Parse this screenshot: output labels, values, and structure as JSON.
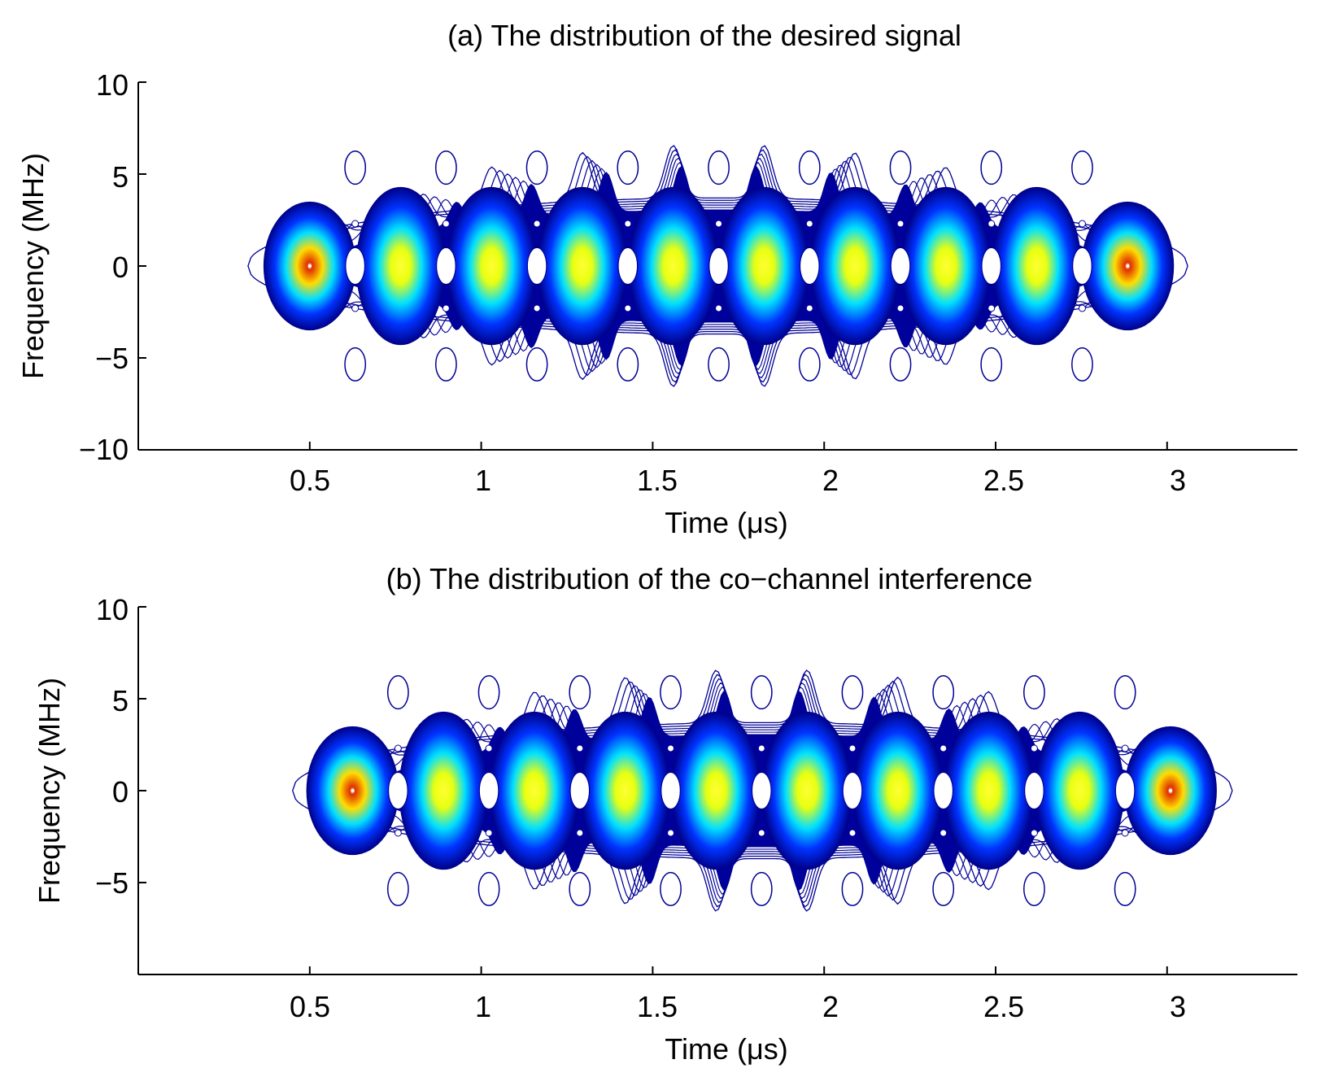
{
  "chart_data": [
    {
      "type": "contour",
      "title": "(a) The distribution of the desired signal",
      "xlabel": "Time (μs)",
      "ylabel": "Frequency (MHz)",
      "xlim": [
        0,
        3.38
      ],
      "ylim": [
        -10,
        10
      ],
      "xticks": [
        0.5,
        1,
        1.5,
        2,
        2.5,
        3
      ],
      "xtick_labels": [
        "0.5",
        "1",
        "1.5",
        "2",
        "2.5",
        "3"
      ],
      "yticks": [
        10,
        5,
        0,
        -5,
        -10
      ],
      "ytick_labels": [
        "10",
        "5",
        "0",
        "−5",
        "−10"
      ],
      "colormap": "jet",
      "peaks": {
        "times": [
          0.5,
          0.765,
          1.03,
          1.295,
          1.56,
          1.825,
          2.09,
          2.355,
          2.62,
          2.885
        ],
        "levels": [
          1.0,
          0.75,
          0.75,
          0.75,
          0.75,
          0.75,
          0.75,
          0.75,
          0.75,
          1.0
        ]
      },
      "envelope_time_range": [
        0.32,
        3.06
      ],
      "envelope_freq_range": [
        -7,
        7
      ]
    },
    {
      "type": "contour",
      "title": "(b) The distribution of the co−channel interference",
      "xlabel": "Time (μs)",
      "ylabel": "Frequency (MHz)",
      "xlim": [
        0,
        3.38
      ],
      "ylim": [
        -10,
        10
      ],
      "xticks": [
        0.5,
        1,
        1.5,
        2,
        2.5,
        3
      ],
      "xtick_labels": [
        "0.5",
        "1",
        "1.5",
        "2",
        "2.5",
        "3"
      ],
      "yticks": [
        10,
        5,
        0,
        -5
      ],
      "ytick_labels": [
        "10",
        "5",
        "0",
        "−5"
      ],
      "colormap": "jet",
      "peaks": {
        "times": [
          0.625,
          0.89,
          1.155,
          1.42,
          1.685,
          1.95,
          2.215,
          2.48,
          2.745,
          3.01
        ],
        "levels": [
          1.0,
          0.75,
          0.75,
          0.75,
          0.75,
          0.75,
          0.75,
          0.75,
          0.75,
          1.0
        ]
      },
      "envelope_time_range": [
        0.45,
        3.19
      ],
      "envelope_freq_range": [
        -7,
        7
      ]
    }
  ]
}
